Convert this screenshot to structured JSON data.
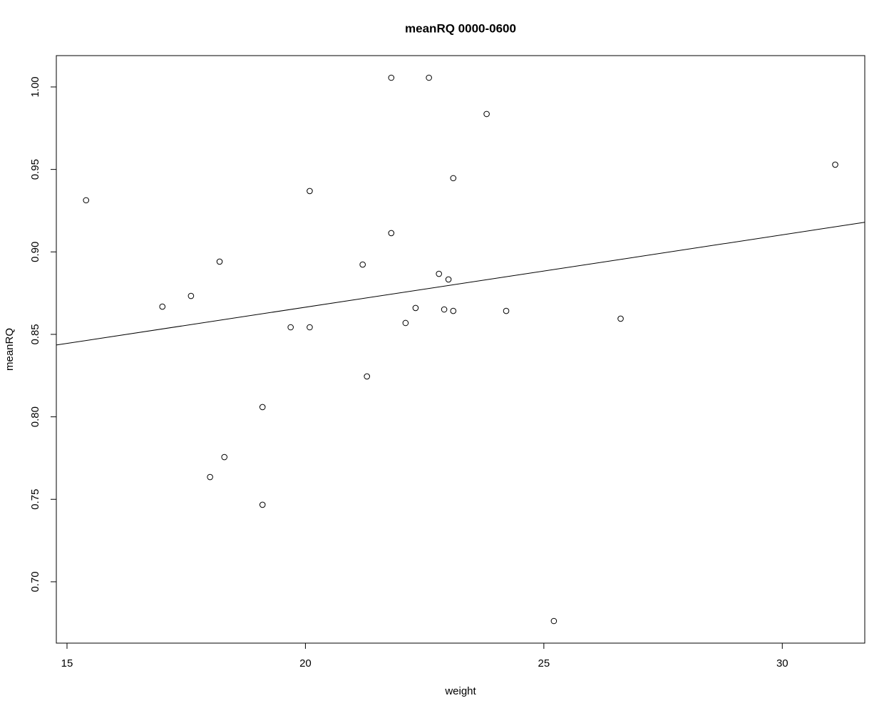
{
  "chart_data": {
    "type": "scatter",
    "title": "meanRQ 0000-0600",
    "x_label": "weight",
    "y_label": "meanRQ",
    "x": [
      15.4,
      17.0,
      17.6,
      18.2,
      18.0,
      18.3,
      19.1,
      19.1,
      19.69,
      20.09,
      20.09,
      21.2,
      21.29,
      21.8,
      21.8,
      22.1,
      22.31,
      22.59,
      22.8,
      22.91,
      23.0,
      23.1,
      23.1,
      23.8,
      24.21,
      25.21,
      26.61,
      31.11
    ],
    "values": [
      0.9313,
      0.8668,
      0.8733,
      0.8941,
      0.7635,
      0.7756,
      0.8059,
      0.7467,
      0.8543,
      0.9369,
      0.8543,
      0.8923,
      0.8245,
      1.0056,
      0.9114,
      0.8569,
      0.866,
      1.0056,
      0.8867,
      0.8651,
      0.8833,
      0.9447,
      0.8642,
      0.9836,
      0.8642,
      0.6762,
      0.8595,
      0.9529
    ],
    "color": "#000000",
    "regression": {
      "intercept": 0.7787,
      "slope": 0.004388
    },
    "xlim": [
      14.776,
      31.73
    ],
    "ylim": [
      0.6628,
      1.019
    ],
    "xticks": [
      15,
      20,
      25,
      30
    ],
    "yticks": [
      {
        "value": 0.7,
        "label": "0.70"
      },
      {
        "value": 0.75,
        "label": "0.75"
      },
      {
        "value": 0.8,
        "label": "0.80"
      },
      {
        "value": 0.85,
        "label": "0.85"
      },
      {
        "value": 0.9,
        "label": "0.90"
      },
      {
        "value": 0.95,
        "label": "0.95"
      },
      {
        "value": 1.0,
        "label": "1.00"
      }
    ]
  }
}
